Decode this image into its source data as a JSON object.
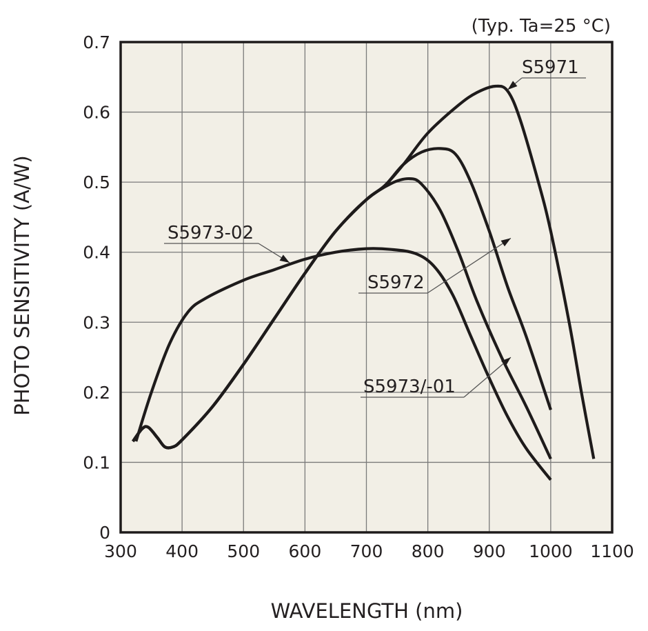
{
  "chart_data": {
    "type": "line",
    "title": "",
    "note": "(Typ. Ta=25 °C)",
    "xlabel": "WAVELENGTH (nm)",
    "ylabel": "PHOTO SENSITIVITY (A/W)",
    "xlim": [
      300,
      1100
    ],
    "ylim": [
      0,
      0.7
    ],
    "xticks": [
      300,
      400,
      500,
      600,
      700,
      800,
      900,
      1000,
      1100
    ],
    "yticks": [
      0,
      0.1,
      0.2,
      0.3,
      0.4,
      0.5,
      0.6,
      0.7
    ],
    "xtick_labels": [
      "300",
      "400",
      "500",
      "600",
      "700",
      "800",
      "900",
      "1000",
      "1100"
    ],
    "ytick_labels": [
      "0",
      "0.1",
      "0.2",
      "0.3",
      "0.4",
      "0.5",
      "0.6",
      "0.7"
    ],
    "grid": true,
    "plot_background": "#f2efe6",
    "line_color": "#1e1b1b",
    "series": [
      {
        "name": "S5971",
        "points": [
          [
            320,
            0.13
          ],
          [
            335,
            0.148
          ],
          [
            345,
            0.15
          ],
          [
            360,
            0.135
          ],
          [
            372,
            0.122
          ],
          [
            385,
            0.122
          ],
          [
            400,
            0.132
          ],
          [
            450,
            0.18
          ],
          [
            500,
            0.24
          ],
          [
            550,
            0.305
          ],
          [
            600,
            0.37
          ],
          [
            650,
            0.43
          ],
          [
            700,
            0.475
          ],
          [
            730,
            0.495
          ],
          [
            760,
            0.525
          ],
          [
            800,
            0.57
          ],
          [
            850,
            0.61
          ],
          [
            880,
            0.628
          ],
          [
            910,
            0.637
          ],
          [
            930,
            0.63
          ],
          [
            950,
            0.59
          ],
          [
            980,
            0.5
          ],
          [
            1000,
            0.43
          ],
          [
            1030,
            0.3
          ],
          [
            1050,
            0.2
          ],
          [
            1070,
            0.105
          ]
        ]
      },
      {
        "name": "S5972",
        "points": [
          [
            320,
            0.13
          ],
          [
            335,
            0.148
          ],
          [
            345,
            0.15
          ],
          [
            360,
            0.135
          ],
          [
            372,
            0.122
          ],
          [
            385,
            0.122
          ],
          [
            400,
            0.132
          ],
          [
            450,
            0.18
          ],
          [
            500,
            0.24
          ],
          [
            550,
            0.305
          ],
          [
            600,
            0.37
          ],
          [
            650,
            0.43
          ],
          [
            700,
            0.475
          ],
          [
            730,
            0.495
          ],
          [
            760,
            0.525
          ],
          [
            790,
            0.543
          ],
          [
            820,
            0.548
          ],
          [
            845,
            0.54
          ],
          [
            870,
            0.5
          ],
          [
            900,
            0.43
          ],
          [
            930,
            0.35
          ],
          [
            960,
            0.28
          ],
          [
            1000,
            0.175
          ]
        ]
      },
      {
        "name": "S5973/-01",
        "points": [
          [
            320,
            0.13
          ],
          [
            335,
            0.148
          ],
          [
            345,
            0.15
          ],
          [
            360,
            0.135
          ],
          [
            372,
            0.122
          ],
          [
            385,
            0.122
          ],
          [
            400,
            0.132
          ],
          [
            450,
            0.18
          ],
          [
            500,
            0.24
          ],
          [
            550,
            0.305
          ],
          [
            600,
            0.37
          ],
          [
            650,
            0.43
          ],
          [
            700,
            0.475
          ],
          [
            740,
            0.498
          ],
          [
            770,
            0.505
          ],
          [
            790,
            0.497
          ],
          [
            820,
            0.46
          ],
          [
            850,
            0.4
          ],
          [
            880,
            0.33
          ],
          [
            920,
            0.25
          ],
          [
            960,
            0.18
          ],
          [
            1000,
            0.105
          ]
        ]
      },
      {
        "name": "S5973-02",
        "points": [
          [
            325,
            0.13
          ],
          [
            350,
            0.2
          ],
          [
            380,
            0.27
          ],
          [
            410,
            0.315
          ],
          [
            440,
            0.335
          ],
          [
            500,
            0.36
          ],
          [
            550,
            0.375
          ],
          [
            600,
            0.39
          ],
          [
            650,
            0.4
          ],
          [
            700,
            0.405
          ],
          [
            740,
            0.404
          ],
          [
            780,
            0.398
          ],
          [
            810,
            0.38
          ],
          [
            840,
            0.34
          ],
          [
            870,
            0.28
          ],
          [
            900,
            0.22
          ],
          [
            930,
            0.165
          ],
          [
            960,
            0.12
          ],
          [
            1000,
            0.075
          ]
        ]
      }
    ],
    "annotations": [
      {
        "text": "S5971",
        "series": "S5971",
        "points_to": [
          930,
          0.632
        ]
      },
      {
        "text": "S5972",
        "series": "S5972",
        "points_to": [
          935,
          0.42
        ]
      },
      {
        "text": "S5973/-01",
        "series": "S5973/-01",
        "points_to": [
          935,
          0.25
        ]
      },
      {
        "text": "S5973-02",
        "series": "S5973-02",
        "points_to": [
          575,
          0.385
        ]
      }
    ]
  }
}
